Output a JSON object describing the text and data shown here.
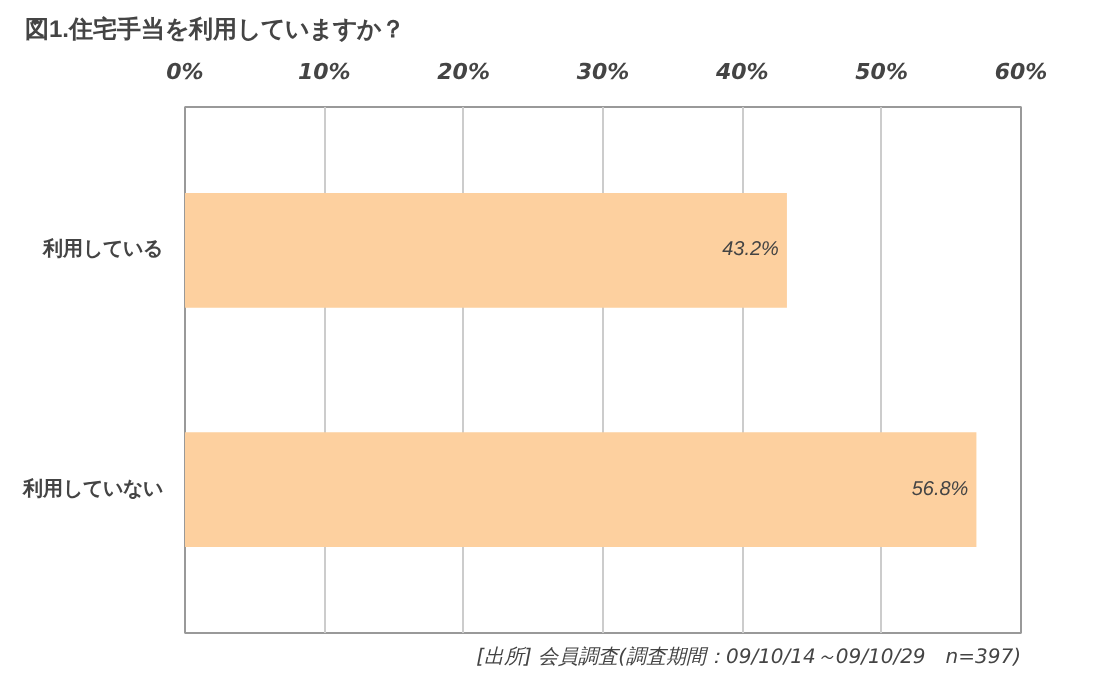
{
  "chart_data": {
    "type": "bar",
    "orientation": "horizontal",
    "title": "図1.住宅手当を利用していますか？",
    "categories": [
      "利用している",
      "利用していない"
    ],
    "values": [
      43.2,
      56.8
    ],
    "color": "#fdd09f",
    "value_labels": [
      "43.2%",
      "56.8%"
    ],
    "xlim": [
      0,
      60
    ],
    "xticks": [
      {
        "value": 0,
        "label": "0%"
      },
      {
        "value": 10,
        "label": "10%"
      },
      {
        "value": 20,
        "label": "20%"
      },
      {
        "value": 30,
        "label": "30%"
      },
      {
        "value": 40,
        "label": "40%"
      },
      {
        "value": 50,
        "label": "50%"
      },
      {
        "value": 60,
        "label": "60%"
      }
    ],
    "grid": "x",
    "annotations": [
      "[出所] 会員調査(調査期間：09/10/14～09/10/29　n=397)"
    ]
  }
}
